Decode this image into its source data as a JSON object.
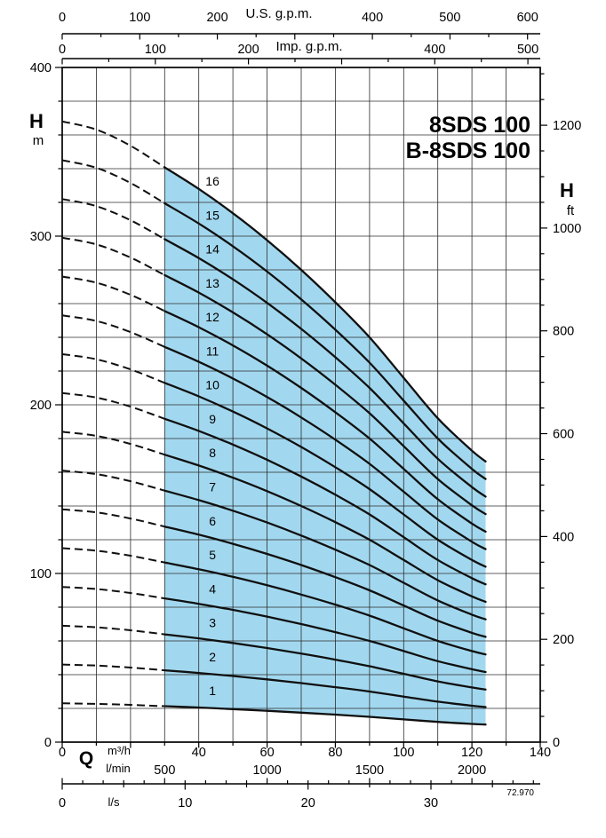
{
  "title": {
    "line1": "8SDS 100",
    "line2": "B-8SDS 100"
  },
  "labels": {
    "head_letter_left": "H",
    "head_unit_left": "m",
    "head_letter_right": "H",
    "head_unit_right": "ft",
    "flow_letter": "Q",
    "unit_m3h": "m³/h",
    "unit_lmin": "l/min",
    "unit_ls": "l/s",
    "unit_usgpm": "U.S. g.p.m.",
    "unit_impgpm": "Imp. g.p.m.",
    "ref_number": "72.970"
  },
  "chart_data": {
    "type": "line",
    "title": "8SDS 100 / B-8SDS 100 multistage pump performance curves (head vs flow)",
    "xlabel": "Q",
    "ylabel": "H",
    "x_axis_m3h": {
      "min": 0,
      "max": 140,
      "grid_step": 10,
      "major_tick_step": 20,
      "minor_tick_step": 10,
      "labeled_ticks": [
        0,
        40,
        60,
        80,
        100,
        120,
        140
      ]
    },
    "y_axis_m": {
      "min": 0,
      "max": 400,
      "grid_step": 20,
      "major_tick_step": 100,
      "minor_tick_step": 20,
      "labeled_ticks": [
        0,
        100,
        200,
        300,
        400
      ]
    },
    "y_axis_ft": {
      "max": 1300,
      "major_tick_step": 200,
      "minor_tick_step": 50,
      "labeled_ticks": [
        0,
        200,
        400,
        600,
        800,
        1000,
        1200
      ],
      "m_per_ft": 0.3048
    },
    "x_axis_usgpm": {
      "max": 600,
      "major_tick_step": 100,
      "minor_tick_step": 50,
      "labeled_ticks": [
        0,
        100,
        200,
        400,
        500,
        600
      ],
      "m3h_per_unit": 0.22712
    },
    "x_axis_impgpm": {
      "max": 500,
      "major_tick_step": 100,
      "minor_tick_step": 50,
      "labeled_ticks": [
        0,
        100,
        200,
        400,
        500
      ],
      "m3h_per_unit": 0.27276
    },
    "x_axis_lmin": {
      "max": 2300,
      "major_tick_step": 500,
      "minor_tick_step": 100,
      "labeled_ticks": [
        500,
        1000,
        1500,
        2000
      ],
      "m3h_per_unit": 0.06
    },
    "x_axis_ls": {
      "max": 38,
      "major_tick_step": 10,
      "minor_tick_step": 5,
      "labeled_ticks": [
        0,
        10,
        20,
        30
      ],
      "m3h_per_unit": 3.6
    },
    "stages": [
      1,
      2,
      3,
      4,
      5,
      6,
      7,
      8,
      9,
      10,
      11,
      12,
      13,
      14,
      15,
      16
    ],
    "q_samples_m3h": [
      0,
      10,
      20,
      30,
      40,
      50,
      60,
      70,
      80,
      90,
      100,
      110,
      120,
      124
    ],
    "single_stage_head_m": [
      23.0,
      22.7,
      22.1,
      21.3,
      20.5,
      19.6,
      18.6,
      17.5,
      16.3,
      15.0,
      13.5,
      12.0,
      10.8,
      10.4
    ],
    "dashed_q_range": [
      0,
      30
    ],
    "solid_q_range": [
      30,
      124
    ],
    "curve_label_q": 44,
    "colors": {
      "band": "#a2d8ef",
      "curve": "#101010",
      "grid": "#2b2b2b"
    }
  }
}
